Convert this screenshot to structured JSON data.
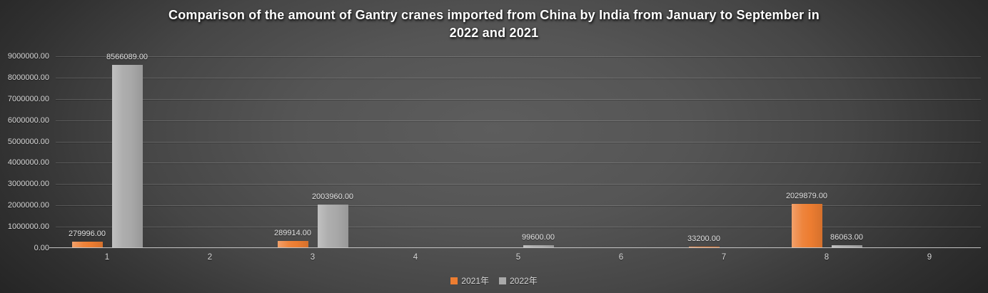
{
  "chart_data": {
    "type": "bar",
    "title": "Comparison of the amount of Gantry cranes imported from China by India from January to September in 2022 and 2021",
    "title_lines": [
      "Comparison of the amount of Gantry cranes imported from China by India from January to September in",
      "2022 and 2021"
    ],
    "categories": [
      "1",
      "2",
      "3",
      "4",
      "5",
      "6",
      "7",
      "8",
      "9"
    ],
    "series": [
      {
        "name": "2021年",
        "color": "#ed7d31",
        "values": [
          279996,
          null,
          289914,
          null,
          null,
          null,
          33200,
          2029879,
          null
        ]
      },
      {
        "name": "2022年",
        "color": "#a9a9a9",
        "values": [
          8566089,
          null,
          2003960,
          null,
          99600,
          null,
          null,
          86063,
          null
        ]
      }
    ],
    "ylim": [
      0,
      9000000
    ],
    "ytick_step": 1000000,
    "ytick_labels": [
      "0.00",
      "1000000.00",
      "2000000.00",
      "3000000.00",
      "4000000.00",
      "5000000.00",
      "6000000.00",
      "7000000.00",
      "8000000.00",
      "9000000.00"
    ],
    "value_label_decimals": 2,
    "grid": true,
    "legend_position": "bottom",
    "colors": {
      "background_center": "#5a5a5a",
      "background_edge": "#232323",
      "title_text": "#ffffff",
      "axis_text": "#d9d9d9",
      "gridline": "rgba(255,255,255,0.17)"
    }
  }
}
